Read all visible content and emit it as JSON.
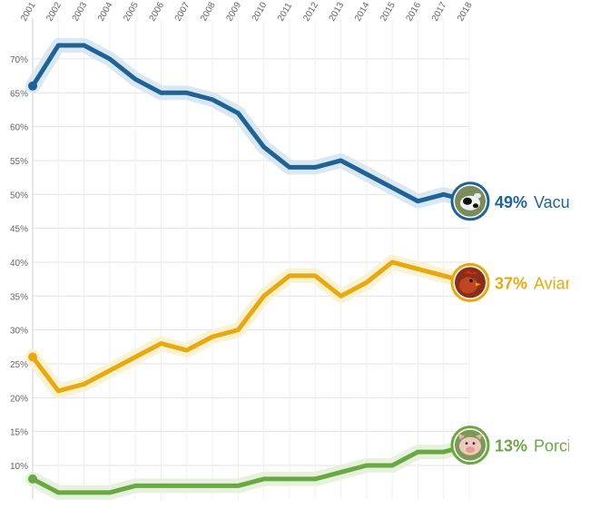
{
  "chart_data": {
    "type": "line",
    "title": "",
    "xlabel": "",
    "ylabel": "",
    "x": [
      "2001",
      "2002",
      "2003",
      "2004",
      "2005",
      "2006",
      "2007",
      "2008",
      "2009",
      "2010",
      "2011",
      "2012",
      "2013",
      "2014",
      "2015",
      "2016",
      "2017",
      "2018"
    ],
    "ylim": [
      0.04,
      0.75
    ],
    "yticks": [
      0.1,
      0.15,
      0.2,
      0.25,
      0.3,
      0.35,
      0.4,
      0.45,
      0.5,
      0.55,
      0.6,
      0.65,
      0.7
    ],
    "ytick_labels": [
      "10%",
      "15%",
      "20%",
      "25%",
      "30%",
      "35%",
      "40%",
      "45%",
      "50%",
      "55%",
      "60%",
      "65%",
      "70%"
    ],
    "grid": true,
    "series": [
      {
        "name": "Vacuno",
        "end_label_pct": "49%",
        "end_label_name": "Vacuno",
        "color": "#1f6396",
        "halo": "#d6e6f3",
        "icon": "cow-photo-icon",
        "values": [
          0.66,
          0.72,
          0.72,
          0.7,
          0.67,
          0.65,
          0.65,
          0.64,
          0.62,
          0.57,
          0.54,
          0.54,
          0.55,
          0.53,
          0.51,
          0.49,
          0.5,
          0.49
        ]
      },
      {
        "name": "Aviar",
        "end_label_pct": "37%",
        "end_label_name": "Aviar",
        "color": "#e8a90f",
        "halo": "#fbf1cd",
        "icon": "chicken-photo-icon",
        "values": [
          0.26,
          0.21,
          0.22,
          0.24,
          0.26,
          0.28,
          0.27,
          0.29,
          0.3,
          0.35,
          0.38,
          0.38,
          0.35,
          0.37,
          0.4,
          0.39,
          0.38,
          0.37
        ]
      },
      {
        "name": "Porcino",
        "end_label_pct": "13%",
        "end_label_name": "Porcino",
        "color": "#6aa844",
        "halo": "#e4f1d9",
        "icon": "pig-photo-icon",
        "values": [
          0.08,
          0.06,
          0.06,
          0.06,
          0.07,
          0.07,
          0.07,
          0.07,
          0.07,
          0.08,
          0.08,
          0.08,
          0.09,
          0.1,
          0.1,
          0.12,
          0.12,
          0.13
        ]
      }
    ]
  }
}
